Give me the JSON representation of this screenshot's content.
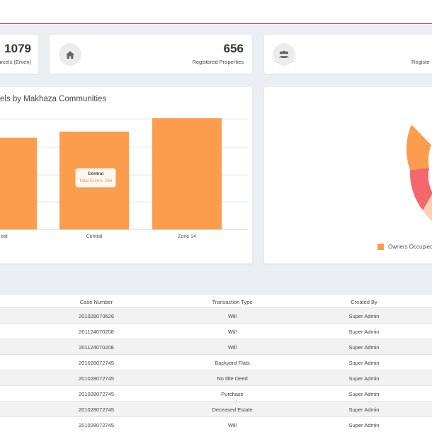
{
  "stats": [
    {
      "value": "1079",
      "label": "arcels (Erven)"
    },
    {
      "value": "656",
      "label": "Registered Properties"
    },
    {
      "value": "",
      "label": "Registe"
    }
  ],
  "icons": {
    "stat2": "home-icon",
    "stat3": "users-icon"
  },
  "bar_chart": {
    "title": "els by Makhaza Communities",
    "tooltip": {
      "title": "Central",
      "text": "Total Erven: 286"
    }
  },
  "donut": {
    "legend_label": "Owners Occupied",
    "colors": [
      "#fb9d4d",
      "#f3686f",
      "#fcd2b3"
    ]
  },
  "chart_data": {
    "type": "bar",
    "categories": [
      "West",
      "Central",
      "Zone 14"
    ],
    "tick_labels": [
      "est",
      "Central",
      "Zone 14"
    ],
    "values": [
      268,
      286,
      325
    ],
    "color": "#fb9d4d"
  },
  "table": {
    "columns": [
      "Case Number",
      "Transaction Type",
      "Created By"
    ],
    "rows": [
      [
        "201028070626",
        "Will",
        "Super Admin"
      ],
      [
        "201124070208",
        "Will",
        "Super Admin"
      ],
      [
        "201124070208",
        "Will",
        "Super Admin"
      ],
      [
        "201028072745",
        "Backyard Flats",
        "Super Admin"
      ],
      [
        "201028072745",
        "No title Deed",
        "Super Admin"
      ],
      [
        "201028072745",
        "Purchase",
        "Super Admin"
      ],
      [
        "201028072745",
        "Deceased Estate",
        "Super Admin"
      ],
      [
        "201028072745",
        "Will",
        "Super Admin"
      ]
    ]
  }
}
